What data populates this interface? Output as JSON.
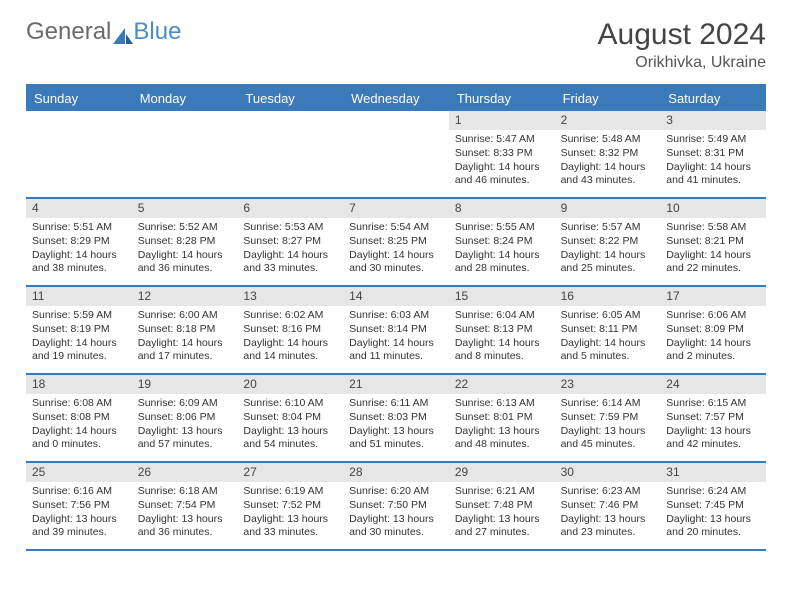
{
  "logo": {
    "text1": "General",
    "text2": "Blue"
  },
  "title": "August 2024",
  "location": "Orikhivka, Ukraine",
  "colors": {
    "header_bar": "#3b7ab8",
    "daynum_bg": "#e6e6e6",
    "text": "#333333",
    "title_text": "#444444",
    "header_text": "#ffffff",
    "page_bg": "#ffffff"
  },
  "day_names": [
    "Sunday",
    "Monday",
    "Tuesday",
    "Wednesday",
    "Thursday",
    "Friday",
    "Saturday"
  ],
  "weeks": [
    [
      null,
      null,
      null,
      null,
      {
        "n": "1",
        "sr": "5:47 AM",
        "ss": "8:33 PM",
        "dl": "14 hours and 46 minutes."
      },
      {
        "n": "2",
        "sr": "5:48 AM",
        "ss": "8:32 PM",
        "dl": "14 hours and 43 minutes."
      },
      {
        "n": "3",
        "sr": "5:49 AM",
        "ss": "8:31 PM",
        "dl": "14 hours and 41 minutes."
      }
    ],
    [
      {
        "n": "4",
        "sr": "5:51 AM",
        "ss": "8:29 PM",
        "dl": "14 hours and 38 minutes."
      },
      {
        "n": "5",
        "sr": "5:52 AM",
        "ss": "8:28 PM",
        "dl": "14 hours and 36 minutes."
      },
      {
        "n": "6",
        "sr": "5:53 AM",
        "ss": "8:27 PM",
        "dl": "14 hours and 33 minutes."
      },
      {
        "n": "7",
        "sr": "5:54 AM",
        "ss": "8:25 PM",
        "dl": "14 hours and 30 minutes."
      },
      {
        "n": "8",
        "sr": "5:55 AM",
        "ss": "8:24 PM",
        "dl": "14 hours and 28 minutes."
      },
      {
        "n": "9",
        "sr": "5:57 AM",
        "ss": "8:22 PM",
        "dl": "14 hours and 25 minutes."
      },
      {
        "n": "10",
        "sr": "5:58 AM",
        "ss": "8:21 PM",
        "dl": "14 hours and 22 minutes."
      }
    ],
    [
      {
        "n": "11",
        "sr": "5:59 AM",
        "ss": "8:19 PM",
        "dl": "14 hours and 19 minutes."
      },
      {
        "n": "12",
        "sr": "6:00 AM",
        "ss": "8:18 PM",
        "dl": "14 hours and 17 minutes."
      },
      {
        "n": "13",
        "sr": "6:02 AM",
        "ss": "8:16 PM",
        "dl": "14 hours and 14 minutes."
      },
      {
        "n": "14",
        "sr": "6:03 AM",
        "ss": "8:14 PM",
        "dl": "14 hours and 11 minutes."
      },
      {
        "n": "15",
        "sr": "6:04 AM",
        "ss": "8:13 PM",
        "dl": "14 hours and 8 minutes."
      },
      {
        "n": "16",
        "sr": "6:05 AM",
        "ss": "8:11 PM",
        "dl": "14 hours and 5 minutes."
      },
      {
        "n": "17",
        "sr": "6:06 AM",
        "ss": "8:09 PM",
        "dl": "14 hours and 2 minutes."
      }
    ],
    [
      {
        "n": "18",
        "sr": "6:08 AM",
        "ss": "8:08 PM",
        "dl": "14 hours and 0 minutes."
      },
      {
        "n": "19",
        "sr": "6:09 AM",
        "ss": "8:06 PM",
        "dl": "13 hours and 57 minutes."
      },
      {
        "n": "20",
        "sr": "6:10 AM",
        "ss": "8:04 PM",
        "dl": "13 hours and 54 minutes."
      },
      {
        "n": "21",
        "sr": "6:11 AM",
        "ss": "8:03 PM",
        "dl": "13 hours and 51 minutes."
      },
      {
        "n": "22",
        "sr": "6:13 AM",
        "ss": "8:01 PM",
        "dl": "13 hours and 48 minutes."
      },
      {
        "n": "23",
        "sr": "6:14 AM",
        "ss": "7:59 PM",
        "dl": "13 hours and 45 minutes."
      },
      {
        "n": "24",
        "sr": "6:15 AM",
        "ss": "7:57 PM",
        "dl": "13 hours and 42 minutes."
      }
    ],
    [
      {
        "n": "25",
        "sr": "6:16 AM",
        "ss": "7:56 PM",
        "dl": "13 hours and 39 minutes."
      },
      {
        "n": "26",
        "sr": "6:18 AM",
        "ss": "7:54 PM",
        "dl": "13 hours and 36 minutes."
      },
      {
        "n": "27",
        "sr": "6:19 AM",
        "ss": "7:52 PM",
        "dl": "13 hours and 33 minutes."
      },
      {
        "n": "28",
        "sr": "6:20 AM",
        "ss": "7:50 PM",
        "dl": "13 hours and 30 minutes."
      },
      {
        "n": "29",
        "sr": "6:21 AM",
        "ss": "7:48 PM",
        "dl": "13 hours and 27 minutes."
      },
      {
        "n": "30",
        "sr": "6:23 AM",
        "ss": "7:46 PM",
        "dl": "13 hours and 23 minutes."
      },
      {
        "n": "31",
        "sr": "6:24 AM",
        "ss": "7:45 PM",
        "dl": "13 hours and 20 minutes."
      }
    ]
  ],
  "labels": {
    "sunrise": "Sunrise:",
    "sunset": "Sunset:",
    "daylight": "Daylight:"
  }
}
